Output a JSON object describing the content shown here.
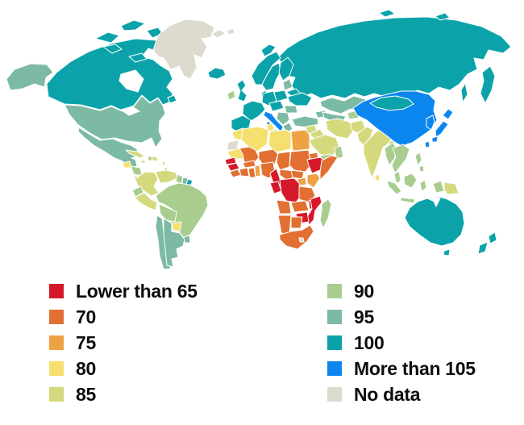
{
  "chart_data": {
    "type": "heatmap",
    "subtype": "world-choropleth",
    "title": "",
    "legend_position": "bottom",
    "palette": {
      "lt65": "#d6182b",
      "70": "#e17032",
      "75": "#eea243",
      "80": "#f5df6e",
      "85": "#d5d97d",
      "90": "#a8cd8f",
      "95": "#7dbaa3",
      "100": "#0ba3a9",
      "105": "#0c86ef",
      "nodata": "#dddbcd"
    },
    "legend": {
      "columns": [
        {
          "items": [
            {
              "label": "Lower than 65",
              "key": "lt65"
            },
            {
              "label": "70",
              "key": "70"
            },
            {
              "label": "75",
              "key": "75"
            },
            {
              "label": "80",
              "key": "80"
            },
            {
              "label": "85",
              "key": "85"
            }
          ]
        },
        {
          "items": [
            {
              "label": "90",
              "key": "90"
            },
            {
              "label": "95",
              "key": "95"
            },
            {
              "label": "100",
              "key": "100"
            },
            {
              "label": "More than 105",
              "key": "105"
            },
            {
              "label": "No data",
              "key": "nodata"
            }
          ]
        }
      ]
    },
    "regions": {
      "greenland": "nodata",
      "svalbard-1": "nodata",
      "svalbard-2": "nodata",
      "western-sahara": "nodata",
      "lesotho": "nodata",
      "canada": "100",
      "canada-island-1": "100",
      "canada-island-2": "100",
      "canada-island-3": "100",
      "canada-island-4": "100",
      "canada-island-5": "100",
      "newfoundland": "100",
      "iceland": "100",
      "uk": "100",
      "norway": "100",
      "sweden": "100",
      "finland": "100",
      "denmark": "100",
      "poland": "100",
      "germany": "100",
      "france": "100",
      "iberia": "100",
      "central-europe": "100",
      "ukraine": "100",
      "belarus": "100",
      "russia": "100",
      "kamchatka": "100",
      "sakhalin": "100",
      "novaya-zemlya": "100",
      "arctic-island-1": "100",
      "arctic-island-2": "100",
      "mongolia": "100",
      "french-guiana": "100",
      "australia": "100",
      "tasmania": "100",
      "new-zealand-north": "100",
      "new-zealand-south": "100",
      "alaska": "95",
      "usa": "95",
      "mexico": "95",
      "argentina": "95",
      "chile": "95",
      "uruguay": "95",
      "suriname": "95",
      "baltics": "95",
      "romania": "95",
      "balkans": "95",
      "greece": "95",
      "turkey": "95",
      "caucasus": "95",
      "kazakhstan": "95",
      "uzbek-turkmen": "95",
      "ireland": "90",
      "haiti": "90",
      "honduras-nicaragua": "90",
      "costa-rica-panama": "90",
      "guyana": "90",
      "ecuador": "90",
      "brazil": "90",
      "bolivia": "90",
      "kyrgyz-tajik": "90",
      "yemen": "90",
      "oman": "90",
      "bangladesh": "90",
      "madagascar": "90",
      "myanmar": "90",
      "indochina": "90",
      "malay-peninsula": "90",
      "philippines-1": "90",
      "philippines-2": "90",
      "sumatra": "90",
      "borneo": "90",
      "java": "90",
      "sulawesi": "90",
      "west-papua": "90",
      "colombia": "85",
      "venezuela": "85",
      "peru": "85",
      "cuba": "85",
      "dominican-republic": "85",
      "jamaica": "85",
      "antilles-1": "85",
      "antilles-2": "85",
      "syria-levant": "85",
      "iraq": "85",
      "iran": "85",
      "afghanistan": "85",
      "pakistan": "85",
      "saudi-arabia": "85",
      "india": "85",
      "papua-new-guinea": "85",
      "guatemala": "80",
      "paraguay": "80",
      "morocco": "80",
      "algeria": "80",
      "tunisia": "80",
      "libya": "80",
      "mauritania": "80",
      "sri-lanka": "80",
      "egypt": "75",
      "togo-benin": "75",
      "uganda": "75",
      "kenya": "75",
      "mali": "70",
      "niger": "70",
      "chad": "70",
      "sudan": "70",
      "south-sudan": "70",
      "eritrea": "70",
      "sierra-leone-liberia": "70",
      "ivory-coast": "70",
      "ghana": "70",
      "burkina-faso": "70",
      "nigeria": "70",
      "central-african-republic": "70",
      "somalia": "70",
      "tanzania": "70",
      "angola": "70",
      "zambia": "70",
      "namibia": "70",
      "botswana": "70",
      "south-africa": "70",
      "senegal": "lt65",
      "guinea": "lt65",
      "cameroon": "lt65",
      "gabon-congo": "lt65",
      "drc": "lt65",
      "ethiopia": "lt65",
      "malawi": "lt65",
      "mozambique": "lt65",
      "zimbabwe": "lt65",
      "italy": "105",
      "sicily": "105",
      "sardinia": "105",
      "china": "105",
      "korea": "105",
      "japan-hokkaido": "105",
      "japan-honshu": "105",
      "japan-kyushu": "105",
      "taiwan": "105"
    }
  }
}
